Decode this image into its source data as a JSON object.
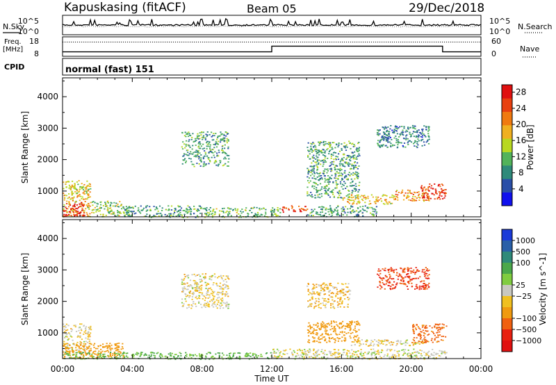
{
  "header": {
    "station": "Kapuskasing (fitACF)",
    "beam": "Beam 05",
    "date": "29/Dec/2018"
  },
  "noise_panel": {
    "left_label": "N.Sky",
    "right_label": "N.Search",
    "left_ticks": [
      "10^5",
      "10^0"
    ],
    "right_ticks": [
      "10^5",
      "10^0"
    ]
  },
  "freq_panel": {
    "left_label_1": "Freq.",
    "left_label_2": "[MHz]",
    "right_label": "Nave",
    "left_ticks": [
      "18",
      "8"
    ],
    "right_ticks": [
      "60",
      "0"
    ],
    "freq_steps": [
      {
        "t0": 0,
        "t1": 12,
        "value": 10.3
      },
      {
        "t0": 12,
        "t1": 21.8,
        "value": 13.2
      },
      {
        "t0": 21.8,
        "t1": 24,
        "value": 10.3
      }
    ],
    "nave_value": 44
  },
  "cpid": {
    "label": "CPID",
    "program": "normal (fast) 151"
  },
  "axes": {
    "ylabel": "Slant Range [km]",
    "yticks": [
      "1000",
      "2000",
      "3000",
      "4000"
    ],
    "xticks": [
      "00:00",
      "04:00",
      "08:00",
      "12:00",
      "16:00",
      "20:00",
      "00:00"
    ],
    "xlabel": "Time UT"
  },
  "power_colorbar": {
    "title": "Power [dB]",
    "ticks": [
      "4",
      "8",
      "12",
      "16",
      "20",
      "24",
      "28"
    ],
    "colors": [
      "#1010ee",
      "#2a4fa8",
      "#2f8a7a",
      "#52b35a",
      "#b8d820",
      "#f0b020",
      "#f07a10",
      "#e84010",
      "#e01010"
    ]
  },
  "velocity_colorbar": {
    "title": "Velocity [m s^-1]",
    "ticks": [
      "1000",
      "500",
      "100",
      "25",
      "−25",
      "−100",
      "−500",
      "−1000"
    ],
    "colors": [
      "#1a3ad8",
      "#2a60a8",
      "#2f8a7a",
      "#4ba84b",
      "#80cc40",
      "#c8c8c0",
      "#f0c020",
      "#f09a10",
      "#f06010",
      "#e82010",
      "#e01010"
    ]
  },
  "chart_data": [
    {
      "type": "heatmap",
      "title": "Power [dB]",
      "xlabel": "Time UT",
      "ylabel": "Slant Range [km]",
      "xlim": [
        0,
        24
      ],
      "ylim": [
        180,
        4600
      ],
      "zlim": [
        0,
        30
      ],
      "regions": [
        {
          "t0": 0.0,
          "t1": 1.6,
          "r0": 180,
          "r1": 1350,
          "v": 18
        },
        {
          "t0": 0.0,
          "t1": 1.2,
          "r0": 200,
          "r1": 650,
          "v": 28
        },
        {
          "t0": 0.4,
          "t1": 1.6,
          "r0": 900,
          "r1": 1200,
          "v": 16
        },
        {
          "t0": 1.6,
          "t1": 3.5,
          "r0": 200,
          "r1": 700,
          "v": 14
        },
        {
          "t0": 3.5,
          "t1": 8.0,
          "r0": 180,
          "r1": 550,
          "v": 10
        },
        {
          "t0": 6.8,
          "t1": 9.5,
          "r0": 1800,
          "r1": 2900,
          "v": 10
        },
        {
          "t0": 8.0,
          "t1": 12.5,
          "r0": 180,
          "r1": 500,
          "v": 12
        },
        {
          "t0": 12.5,
          "t1": 14.0,
          "r0": 350,
          "r1": 550,
          "v": 26
        },
        {
          "t0": 14.0,
          "t1": 18.0,
          "r0": 200,
          "r1": 550,
          "v": 10
        },
        {
          "t0": 14.0,
          "t1": 17.0,
          "r0": 800,
          "r1": 2600,
          "v": 10
        },
        {
          "t0": 16.0,
          "t1": 19.0,
          "r0": 600,
          "r1": 900,
          "v": 18
        },
        {
          "t0": 19.0,
          "t1": 21.0,
          "r0": 700,
          "r1": 1050,
          "v": 20
        },
        {
          "t0": 20.5,
          "t1": 22.0,
          "r0": 750,
          "r1": 1250,
          "v": 26
        },
        {
          "t0": 18.0,
          "t1": 21.0,
          "r0": 2400,
          "r1": 3100,
          "v": 8
        }
      ]
    },
    {
      "type": "heatmap",
      "title": "Velocity [m s^-1]",
      "xlabel": "Time UT",
      "ylabel": "Slant Range [km]",
      "xlim": [
        0,
        24
      ],
      "ylim": [
        180,
        4600
      ],
      "zlim": [
        -1000,
        1000
      ],
      "regions": [
        {
          "t0": 0.0,
          "t1": 1.6,
          "r0": 400,
          "r1": 1300,
          "v": 0
        },
        {
          "t0": 0.0,
          "t1": 3.5,
          "r0": 200,
          "r1": 700,
          "v": -60
        },
        {
          "t0": 0.0,
          "t1": 12.0,
          "r0": 180,
          "r1": 400,
          "v": 60
        },
        {
          "t0": 6.8,
          "t1": 9.5,
          "r0": 1800,
          "r1": 2900,
          "v": 0
        },
        {
          "t0": 12.0,
          "t1": 22.0,
          "r0": 180,
          "r1": 500,
          "v": 10
        },
        {
          "t0": 14.0,
          "t1": 17.0,
          "r0": 700,
          "r1": 1400,
          "v": -60
        },
        {
          "t0": 14.0,
          "t1": 16.5,
          "r0": 1800,
          "r1": 2600,
          "v": -20
        },
        {
          "t0": 16.5,
          "t1": 21.0,
          "r0": 600,
          "r1": 800,
          "v": 0
        },
        {
          "t0": 20.0,
          "t1": 22.0,
          "r0": 700,
          "r1": 1300,
          "v": -120
        },
        {
          "t0": 18.0,
          "t1": 21.0,
          "r0": 2400,
          "r1": 3100,
          "v": -300
        }
      ]
    }
  ]
}
